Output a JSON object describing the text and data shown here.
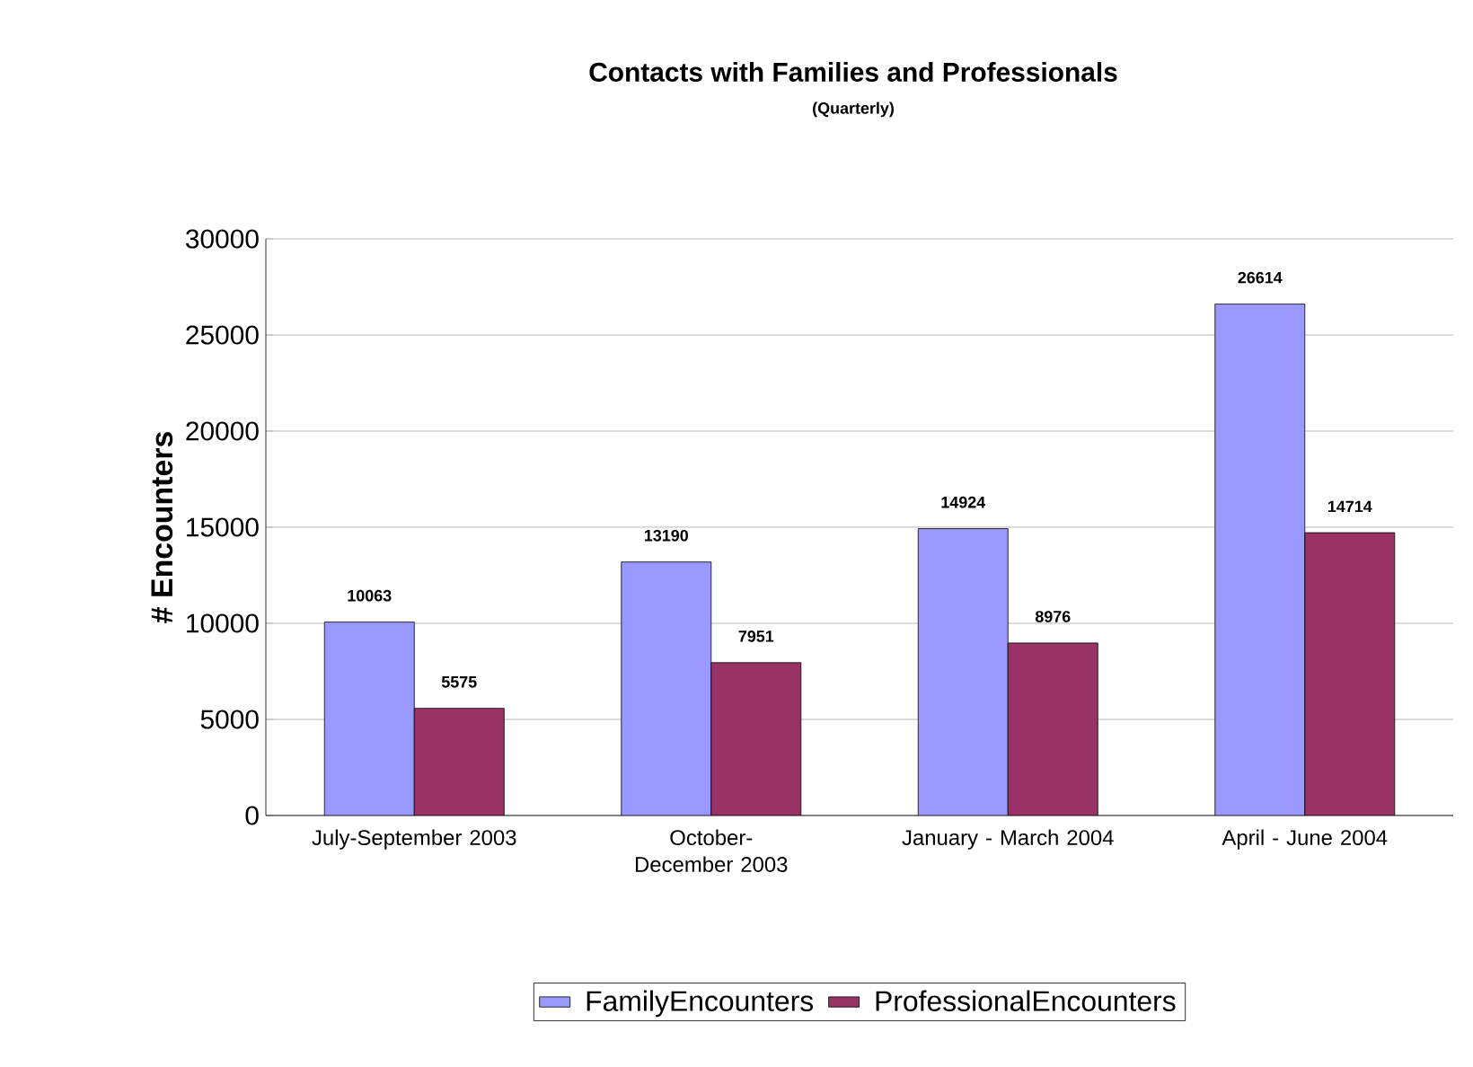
{
  "chart_data": {
    "type": "bar",
    "title": "Contacts with Families and Professionals",
    "subtitle": "(Quarterly)",
    "ylabel": "# Encounters",
    "categories": [
      "July-September 2003",
      "October-December 2003",
      "January - March 2004",
      "April - June 2004"
    ],
    "series": [
      {
        "name": "FamilyEncounters",
        "color": "#9999ff",
        "values": [
          10063,
          13190,
          14924,
          26614
        ]
      },
      {
        "name": "ProfessionalEncounters",
        "color": "#993366",
        "values": [
          5575,
          7951,
          8976,
          14714
        ]
      }
    ],
    "ylim": [
      0,
      30000
    ],
    "yticks": [
      0,
      5000,
      10000,
      15000,
      20000,
      25000,
      30000
    ],
    "grid": "y",
    "legend": "bottom",
    "data_labels": true
  }
}
